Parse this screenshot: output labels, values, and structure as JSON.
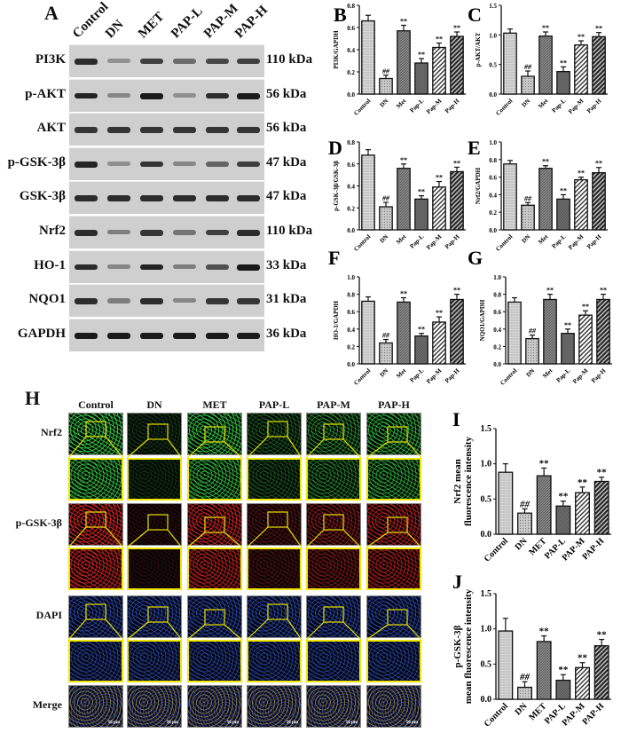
{
  "panel_labels": {
    "A": "A",
    "B": "B",
    "C": "C",
    "D": "D",
    "E": "E",
    "F": "F",
    "G": "G",
    "H": "H",
    "I": "I",
    "J": "J"
  },
  "blot": {
    "lanes": [
      "Control",
      "DN",
      "MET",
      "PAP-L",
      "PAP-M",
      "PAP-H"
    ],
    "rows": [
      {
        "protein": "PI3K",
        "kda": "110 kDa",
        "intensity": [
          0.9,
          0.35,
          0.8,
          0.55,
          0.75,
          0.8
        ]
      },
      {
        "protein": "p-AKT",
        "kda": "56 kDa",
        "intensity": [
          0.95,
          0.4,
          1.0,
          0.35,
          0.9,
          1.0
        ]
      },
      {
        "protein": "AKT",
        "kda": "56 kDa",
        "intensity": [
          0.85,
          0.85,
          0.85,
          0.85,
          0.85,
          0.85
        ]
      },
      {
        "protein": "p-GSK-3β",
        "kda": "47 kDa",
        "intensity": [
          0.95,
          0.35,
          0.85,
          0.4,
          0.6,
          0.8
        ]
      },
      {
        "protein": "GSK-3β",
        "kda": "47 kDa",
        "intensity": [
          0.9,
          0.9,
          0.9,
          0.9,
          0.9,
          0.9
        ]
      },
      {
        "protein": "Nrf2",
        "kda": "110 kDa",
        "intensity": [
          0.9,
          0.45,
          0.85,
          0.5,
          0.8,
          0.9
        ]
      },
      {
        "protein": "HO-1",
        "kda": "33 kDa",
        "intensity": [
          0.9,
          0.4,
          0.95,
          0.45,
          0.7,
          1.0
        ]
      },
      {
        "protein": "NQO1",
        "kda": "31 kDa",
        "intensity": [
          0.9,
          0.45,
          0.9,
          0.4,
          0.85,
          0.85
        ]
      },
      {
        "protein": "GAPDH",
        "kda": "36 kDa",
        "intensity": [
          1.0,
          1.0,
          1.0,
          1.0,
          1.0,
          1.0
        ]
      }
    ]
  },
  "fluorescence": {
    "columns": [
      "Control",
      "DN",
      "MET",
      "PAP-L",
      "PAP-M",
      "PAP-H"
    ],
    "rows": [
      {
        "label": "Nrf2",
        "color": "#2fd040",
        "intensity": [
          0.9,
          0.2,
          0.85,
          0.35,
          0.55,
          0.75
        ]
      },
      {
        "label": "p-GSK-3β",
        "color": "#e02020",
        "intensity": [
          0.9,
          0.15,
          0.8,
          0.3,
          0.5,
          0.7
        ]
      },
      {
        "label": "DAPI",
        "color": "#2a50d0",
        "intensity": [
          0.7,
          0.7,
          0.7,
          0.7,
          0.7,
          0.7
        ]
      },
      {
        "label": "Merge",
        "color": "#8a8a40",
        "intensity": [
          0.9,
          0.4,
          0.8,
          0.5,
          0.6,
          0.7
        ]
      }
    ],
    "scale_bar": "50 μm"
  },
  "chart_data": [
    {
      "id": "B",
      "type": "bar",
      "ylabel": "PI3K/GAPDH",
      "categories": [
        "Control",
        "DN",
        "Met",
        "Pap-L",
        "Pap-M",
        "Pap-H"
      ],
      "values": [
        0.66,
        0.14,
        0.57,
        0.28,
        0.42,
        0.52
      ],
      "errors": [
        0.05,
        0.03,
        0.05,
        0.04,
        0.04,
        0.04
      ],
      "annotations": [
        "",
        "##",
        "**",
        "**",
        "**",
        "**"
      ],
      "ylim": [
        0,
        0.8
      ],
      "yticks": [
        "0.0",
        "0.2",
        "0.4",
        "0.6",
        "0.8"
      ]
    },
    {
      "id": "C",
      "type": "bar",
      "ylabel": "p-AKT/AKT",
      "categories": [
        "Control",
        "DN",
        "Met",
        "Pap-L",
        "Pap-M",
        "Pap-H"
      ],
      "values": [
        1.03,
        0.3,
        0.98,
        0.38,
        0.83,
        0.97
      ],
      "errors": [
        0.07,
        0.09,
        0.07,
        0.08,
        0.07,
        0.07
      ],
      "annotations": [
        "",
        "##",
        "**",
        "**",
        "**",
        "**"
      ],
      "ylim": [
        0,
        1.5
      ],
      "yticks": [
        "0.0",
        "0.5",
        "1.0",
        "1.5"
      ]
    },
    {
      "id": "D",
      "type": "bar",
      "ylabel": "p-GSK-3β/GSK-3β",
      "categories": [
        "Control",
        "DN",
        "Met",
        "Pap-L",
        "Pap-M",
        "Pap-H"
      ],
      "values": [
        0.68,
        0.21,
        0.56,
        0.28,
        0.39,
        0.53
      ],
      "errors": [
        0.05,
        0.04,
        0.04,
        0.03,
        0.05,
        0.04
      ],
      "annotations": [
        "",
        "##",
        "**",
        "**",
        "**",
        "**"
      ],
      "ylim": [
        0,
        0.8
      ],
      "yticks": [
        "0.0",
        "0.2",
        "0.4",
        "0.6",
        "0.8"
      ]
    },
    {
      "id": "E",
      "type": "bar",
      "ylabel": "Nrf2/GAPDH",
      "categories": [
        "Control",
        "DN",
        "Met",
        "Pap-L",
        "Pap-M",
        "Pap-H"
      ],
      "values": [
        0.75,
        0.28,
        0.7,
        0.35,
        0.57,
        0.65
      ],
      "errors": [
        0.04,
        0.03,
        0.03,
        0.05,
        0.03,
        0.06
      ],
      "annotations": [
        "",
        "##",
        "**",
        "**",
        "**",
        "**"
      ],
      "ylim": [
        0,
        1.0
      ],
      "yticks": [
        "0.0",
        "0.2",
        "0.4",
        "0.6",
        "0.8",
        "1.0"
      ]
    },
    {
      "id": "F",
      "type": "bar",
      "ylabel": "HO-1/GAPDH",
      "categories": [
        "Control",
        "DN",
        "Met",
        "Pap-L",
        "Pap-M",
        "Pap-H"
      ],
      "values": [
        0.72,
        0.24,
        0.71,
        0.32,
        0.48,
        0.74
      ],
      "errors": [
        0.05,
        0.04,
        0.05,
        0.03,
        0.06,
        0.06
      ],
      "annotations": [
        "",
        "##",
        "**",
        "**",
        "**",
        "**"
      ],
      "ylim": [
        0,
        1.0
      ],
      "yticks": [
        "0.0",
        "0.2",
        "0.4",
        "0.6",
        "0.8",
        "1.0"
      ]
    },
    {
      "id": "G",
      "type": "bar",
      "ylabel": "NQO1/GAPDH",
      "categories": [
        "Control",
        "DN",
        "Met",
        "Pap-L",
        "Pap-M",
        "Pap-H"
      ],
      "values": [
        0.71,
        0.29,
        0.74,
        0.35,
        0.56,
        0.74
      ],
      "errors": [
        0.05,
        0.04,
        0.06,
        0.05,
        0.05,
        0.06
      ],
      "annotations": [
        "",
        "##",
        "**",
        "**",
        "**",
        "**"
      ],
      "ylim": [
        0,
        1.0
      ],
      "yticks": [
        "0.0",
        "0.2",
        "0.4",
        "0.6",
        "0.8",
        "1.0"
      ]
    },
    {
      "id": "I",
      "type": "bar",
      "ylabel": [
        "Nrf2 mean",
        "fluorescence intensity"
      ],
      "categories": [
        "Control",
        "DN",
        "MET",
        "PAP-L",
        "PAP-M",
        "PAP-H"
      ],
      "values": [
        0.88,
        0.3,
        0.83,
        0.4,
        0.59,
        0.75
      ],
      "errors": [
        0.12,
        0.06,
        0.11,
        0.07,
        0.08,
        0.06
      ],
      "annotations": [
        "",
        "##",
        "**",
        "**",
        "**",
        "**"
      ],
      "ylim": [
        0,
        1.5
      ],
      "yticks": [
        "0.0",
        "0.5",
        "1.0",
        "1.5"
      ]
    },
    {
      "id": "J",
      "type": "bar",
      "ylabel": [
        "p-GSK-3β",
        "mean fluorescence intensity"
      ],
      "categories": [
        "Control",
        "DN",
        "MET",
        "PAP-L",
        "PAP-M",
        "PAP-H"
      ],
      "values": [
        0.97,
        0.17,
        0.82,
        0.27,
        0.45,
        0.76
      ],
      "errors": [
        0.18,
        0.08,
        0.08,
        0.08,
        0.07,
        0.09
      ],
      "annotations": [
        "",
        "##",
        "**",
        "**",
        "**",
        "**"
      ],
      "ylim": [
        0,
        1.5
      ],
      "yticks": [
        "0.0",
        "0.5",
        "1.0",
        "1.5"
      ]
    }
  ]
}
